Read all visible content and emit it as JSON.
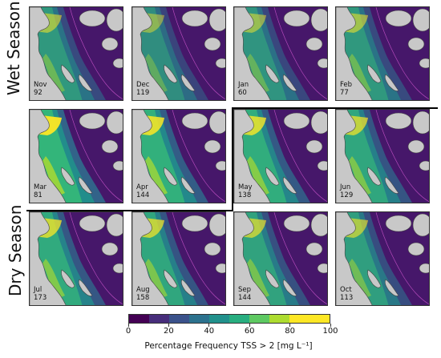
{
  "seasons": {
    "wet": "Wet Season",
    "dry": "Dry Season"
  },
  "panels": [
    {
      "month": "Nov",
      "count": "92",
      "intensity": 0.55
    },
    {
      "month": "Dec",
      "count": "119",
      "intensity": 0.45
    },
    {
      "month": "Jan",
      "count": "60",
      "intensity": 0.5
    },
    {
      "month": "Feb",
      "count": "77",
      "intensity": 0.55
    },
    {
      "month": "Mar",
      "count": "81",
      "intensity": 0.95
    },
    {
      "month": "Apr",
      "count": "144",
      "intensity": 0.85
    },
    {
      "month": "May",
      "count": "138",
      "intensity": 0.8
    },
    {
      "month": "Jun",
      "count": "129",
      "intensity": 0.7
    },
    {
      "month": "Jul",
      "count": "173",
      "intensity": 0.75
    },
    {
      "month": "Aug",
      "count": "158",
      "intensity": 0.7
    },
    {
      "month": "Sep",
      "count": "144",
      "intensity": 0.65
    },
    {
      "month": "Oct",
      "count": "113",
      "intensity": 0.6
    }
  ],
  "colorbar": {
    "title": "Percentage Frequency TSS > 2 [mg L⁻¹]",
    "ticks": [
      "0",
      "20",
      "40",
      "60",
      "80",
      "100"
    ],
    "colors": [
      "#440154",
      "#472d7b",
      "#3b528b",
      "#2c728e",
      "#21918c",
      "#28ae80",
      "#5ec962",
      "#addc30",
      "#fde725",
      "#fde725"
    ]
  }
}
